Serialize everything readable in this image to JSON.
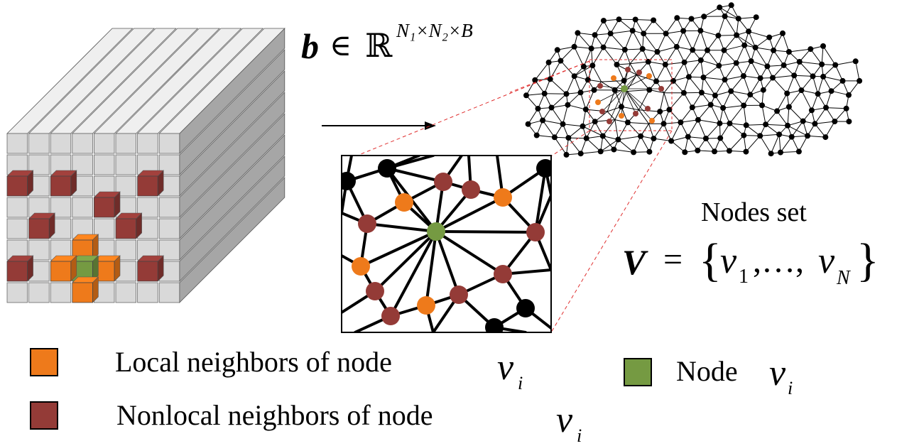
{
  "formula_b": {
    "symbol": "b",
    "relation": "∈",
    "space": "ℝ",
    "exponent": "N₁×N₂×B"
  },
  "nodes_set": {
    "title": "Nodes set",
    "formula": {
      "symbol": "V",
      "equals": "=",
      "open": "{",
      "v1": "v",
      "sub1": "1",
      "dots": ",…,",
      "vN": "v",
      "subN": "N",
      "close": "}"
    }
  },
  "legend": {
    "local": {
      "label": "Local neighbors of node",
      "var": "v",
      "sub": "i",
      "color": "#ee7a1b"
    },
    "nonlocal": {
      "label": "Nonlocal neighbors of node",
      "var": "v",
      "sub": "i",
      "color": "#943b37"
    },
    "node": {
      "label": "Node",
      "var": "v",
      "sub": "i",
      "color": "#759a42"
    }
  },
  "colors": {
    "cube_face": "#d9d9d9",
    "cube_side": "#a6a6a6",
    "cube_top": "#efefef",
    "black_node": "#000000",
    "guide_line": "#e03030"
  }
}
